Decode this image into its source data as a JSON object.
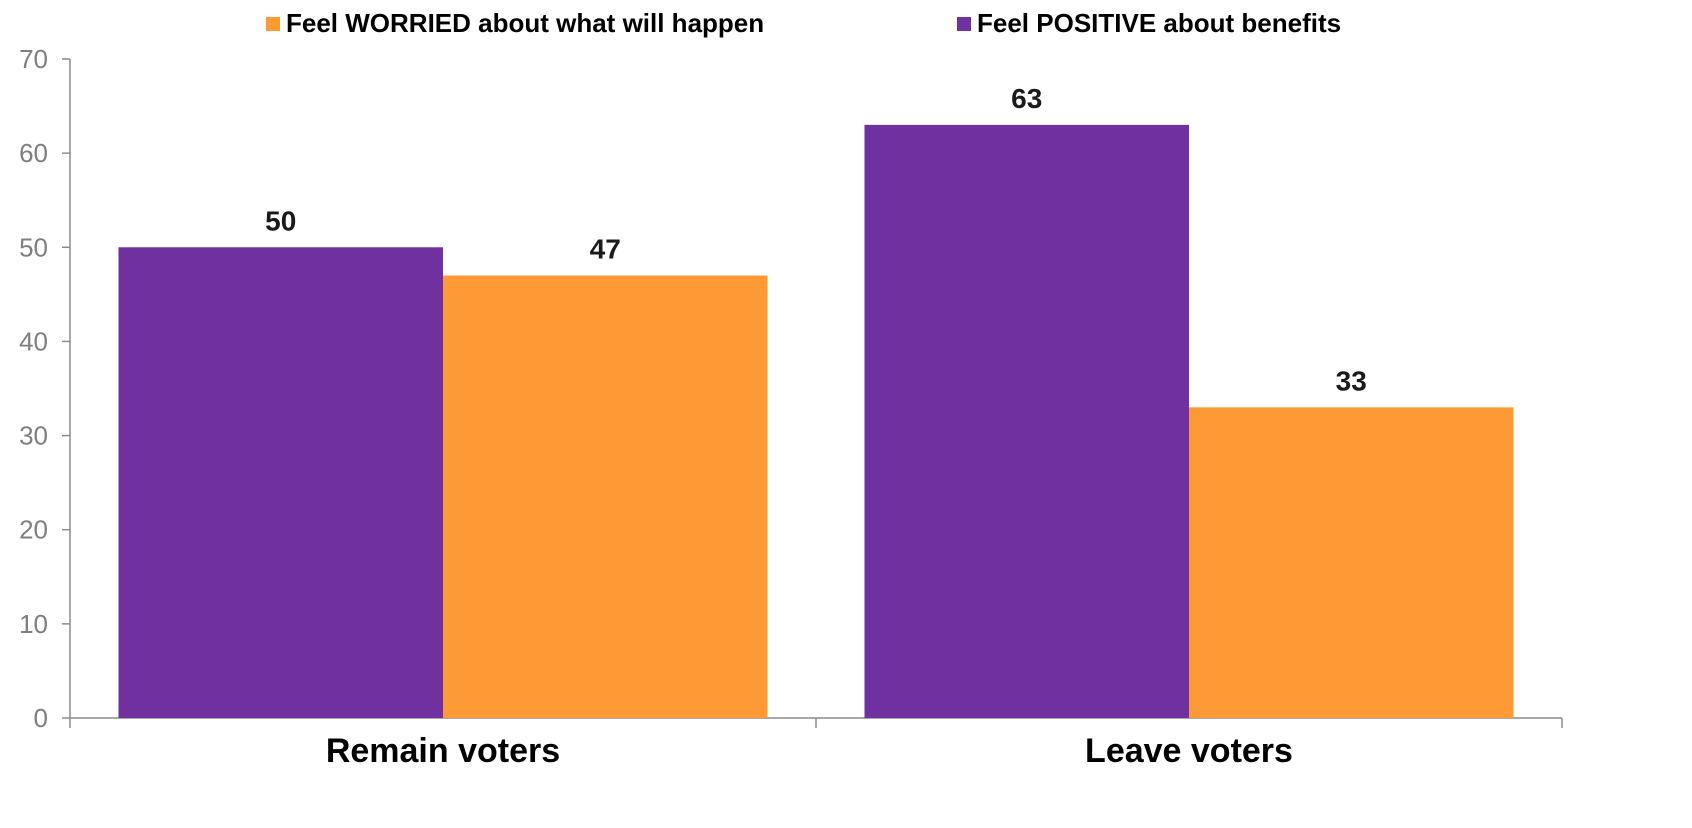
{
  "chart_data": {
    "type": "bar",
    "categories": [
      "Remain voters",
      "Leave voters"
    ],
    "series": [
      {
        "name": "Feel POSITIVE about benefits",
        "color": "#7030a0",
        "values": [
          50,
          63
        ]
      },
      {
        "name": "Feel WORRIED about what will happen",
        "color": "#fd9a36",
        "values": [
          47,
          33
        ]
      }
    ],
    "legend": [
      {
        "name": "Feel WORRIED about what will happen",
        "color": "#fd9a36"
      },
      {
        "name": "Feel POSITIVE about benefits",
        "color": "#7030a0"
      }
    ],
    "legend_position": "top",
    "yticks": [
      0,
      10,
      20,
      30,
      40,
      50,
      60,
      70
    ],
    "ylim": [
      0,
      70
    ],
    "grid": false,
    "title": "",
    "xlabel": "",
    "ylabel": ""
  }
}
